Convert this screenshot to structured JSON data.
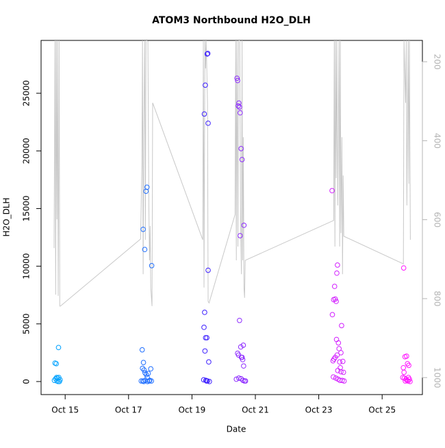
{
  "chart_data": {
    "type": "scatter",
    "title": "ATOM3 Northbound H2O_DLH",
    "x_label": "Date",
    "y_label": "H2O_DLH",
    "xlim": [
      14.24,
      26.27
    ],
    "xticks": [
      {
        "value": 15,
        "label": "Oct 15"
      },
      {
        "value": 17,
        "label": "Oct 17"
      },
      {
        "value": 19,
        "label": "Oct 19"
      },
      {
        "value": 21,
        "label": "Oct 21"
      },
      {
        "value": 23,
        "label": "Oct 23"
      },
      {
        "value": 25,
        "label": "Oct 25"
      }
    ],
    "ylim": [
      -1130,
      29580
    ],
    "yticks": [
      0,
      5000,
      10000,
      15000,
      20000,
      25000
    ],
    "y2lim": [
      1043,
      146
    ],
    "y2ticks": [
      200,
      400,
      600,
      800,
      1000
    ],
    "series": [
      {
        "color": "#00a2ff",
        "x": [
          14.66,
          14.68,
          14.72,
          14.7,
          14.74,
          14.76,
          14.79,
          14.8,
          14.82,
          14.84,
          14.78,
          14.73
        ],
        "values": [
          100,
          1600,
          1550,
          250,
          50,
          300,
          2950,
          350,
          0,
          150,
          0,
          350
        ]
      },
      {
        "color": "#1e6eff",
        "x": [
          17.43,
          17.47,
          17.46,
          17.51,
          17.55,
          17.58,
          17.73,
          17.44,
          17.49,
          17.52,
          17.56,
          17.59,
          17.62,
          17.7,
          17.4,
          17.45,
          17.53,
          17.6,
          17.65,
          17.72,
          17.48,
          17.67
        ],
        "values": [
          2750,
          1650,
          13200,
          11450,
          16500,
          16850,
          10050,
          1150,
          1000,
          750,
          600,
          350,
          700,
          1100,
          50,
          50,
          100,
          0,
          50,
          50,
          0,
          100
        ]
      },
      {
        "color": "#3c1eff",
        "x": [
          19.39,
          19.42,
          19.48,
          19.5,
          19.51,
          19.51,
          19.4,
          19.38,
          19.43,
          19.47,
          19.41,
          19.53,
          19.37,
          19.44,
          19.49,
          19.55,
          19.46
        ],
        "values": [
          23200,
          25700,
          28400,
          28450,
          22400,
          9650,
          6000,
          4700,
          3800,
          3800,
          2650,
          1700,
          150,
          100,
          50,
          0,
          50
        ]
      },
      {
        "color": "#8c28ff",
        "x": [
          20.42,
          20.44,
          20.46,
          20.48,
          20.5,
          20.52,
          20.55,
          20.58,
          20.52,
          20.64,
          20.5,
          20.54,
          20.62,
          20.44,
          20.47,
          20.56,
          20.6,
          20.63,
          20.58,
          20.4,
          20.48,
          20.55,
          20.61,
          20.66,
          20.69
        ],
        "values": [
          26300,
          26100,
          23900,
          24150,
          23800,
          23300,
          20200,
          19250,
          12650,
          13550,
          5300,
          3000,
          3150,
          2450,
          2300,
          2100,
          1900,
          1350,
          2100,
          200,
          300,
          250,
          100,
          50,
          50
        ]
      },
      {
        "color": "#d21eff",
        "x": [
          23.42,
          23.59,
          23.57,
          23.5,
          23.52,
          23.55,
          23.47,
          23.43,
          23.72,
          23.56,
          23.62,
          23.64,
          23.7,
          23.52,
          23.48,
          23.45,
          23.58,
          23.66,
          23.76,
          23.68,
          23.6,
          23.7,
          23.78,
          23.46,
          23.54,
          23.61,
          23.67,
          23.74,
          23.8
        ],
        "values": [
          16550,
          10100,
          9400,
          8250,
          7150,
          6950,
          7100,
          5800,
          4850,
          3650,
          3350,
          2850,
          2500,
          2100,
          1950,
          1800,
          2300,
          1700,
          1750,
          1200,
          950,
          850,
          800,
          400,
          300,
          200,
          100,
          100,
          50
        ]
      },
      {
        "color": "#ff14ff",
        "x": [
          25.68,
          25.72,
          25.77,
          25.67,
          25.8,
          25.84,
          25.65,
          25.7,
          25.75,
          25.79,
          25.83,
          25.86,
          25.73,
          25.88,
          25.82,
          25.69
        ],
        "values": [
          9850,
          2150,
          2200,
          1200,
          1550,
          1400,
          350,
          300,
          200,
          100,
          350,
          200,
          50,
          0,
          50,
          800
        ]
      },
      {
        "type": "line",
        "axis": "y2",
        "color": "#c8c8c8",
        "x": [
          14.65,
          14.68,
          14.7,
          14.72,
          14.74,
          14.76,
          14.78,
          14.81,
          14.83,
          14.85,
          17.38,
          17.42,
          17.44,
          17.46,
          17.48,
          17.51,
          17.53,
          17.55,
          17.57,
          17.61,
          17.64,
          17.66,
          17.68,
          17.7,
          17.74,
          17.76,
          19.34,
          19.36,
          19.38,
          19.41,
          19.43,
          19.45,
          19.49,
          19.51,
          19.54,
          20.36,
          20.38,
          20.4,
          20.42,
          20.45,
          20.47,
          20.51,
          20.53,
          20.56,
          20.58,
          20.6,
          20.62,
          20.64,
          20.66,
          20.68,
          23.47,
          23.49,
          23.51,
          23.53,
          23.55,
          23.57,
          23.6,
          23.64,
          23.66,
          23.68,
          23.7,
          23.73,
          23.75,
          23.77,
          23.79,
          25.67,
          25.69,
          25.74,
          25.76,
          25.78,
          25.82,
          25.84,
          25.86,
          25.89
        ],
        "values": [
          672,
          146,
          790,
          146,
          599,
          146,
          793,
          146,
          819,
          819,
          649,
          460,
          146,
          738,
          391,
          146,
          651,
          146,
          146,
          148,
          564,
          703,
          616,
          772,
          819,
          304,
          651,
          146,
          772,
          146,
          217,
          146,
          304,
          807,
          811,
          587,
          146,
          703,
          146,
          668,
          146,
          146,
          564,
          738,
          146,
          703,
          391,
          772,
          798,
          703,
          602,
          146,
          668,
          146,
          495,
          146,
          564,
          146,
          668,
          146,
          634,
          391,
          738,
          488,
          642,
          712,
          146,
          304,
          146,
          564,
          146,
          509,
          146,
          651
        ]
      }
    ]
  }
}
